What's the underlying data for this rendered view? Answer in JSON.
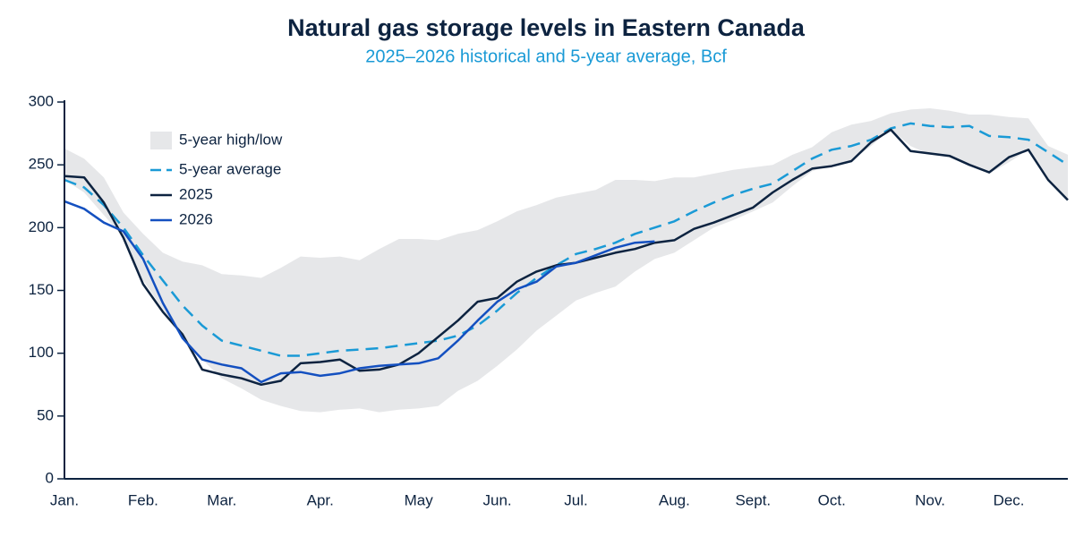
{
  "chart_data": {
    "type": "line",
    "title": "Natural gas storage levels in Eastern Canada",
    "subtitle": "2025–2026 historical and 5-year average, Bcf",
    "categories": [
      "Jan.",
      null,
      null,
      null,
      "Feb.",
      null,
      null,
      null,
      "Mar.",
      null,
      null,
      null,
      null,
      "Apr.",
      null,
      null,
      null,
      null,
      "May",
      null,
      null,
      null,
      "Jun.",
      null,
      null,
      null,
      "Jul.",
      null,
      null,
      null,
      null,
      "Aug.",
      null,
      null,
      null,
      "Sept.",
      null,
      null,
      null,
      "Oct.",
      null,
      null,
      null,
      null,
      "Nov.",
      null,
      null,
      null,
      "Dec.",
      null,
      null,
      null
    ],
    "ylim": [
      0,
      300
    ],
    "yticks": [
      0,
      50,
      100,
      150,
      200,
      250,
      300
    ],
    "series": [
      {
        "name": "5-year high/low",
        "kind": "band",
        "color": "#e6e7e9",
        "high": [
          263,
          255,
          240,
          212,
          195,
          180,
          173,
          170,
          163,
          162,
          160,
          168,
          177,
          176,
          177,
          174,
          183,
          191,
          191,
          190,
          195,
          198,
          205,
          213,
          218,
          224,
          227,
          230,
          238,
          238,
          237,
          240,
          240,
          243,
          246,
          248,
          250,
          258,
          264,
          276,
          282,
          285,
          291,
          294,
          295,
          293,
          290,
          290,
          288,
          287,
          265,
          258
        ],
        "low": [
          238,
          228,
          210,
          192,
          158,
          135,
          112,
          95,
          80,
          72,
          63,
          58,
          54,
          53,
          55,
          56,
          53,
          55,
          56,
          58,
          70,
          78,
          90,
          103,
          118,
          130,
          142,
          148,
          153,
          165,
          175,
          180,
          190,
          200,
          206,
          213,
          220,
          233,
          245,
          250,
          253,
          265,
          278,
          265,
          258,
          256,
          250,
          243,
          252,
          262,
          238,
          222
        ]
      },
      {
        "name": "5-year average",
        "color": "#1a9ad6",
        "dashed": true,
        "values": [
          238,
          232,
          218,
          200,
          178,
          158,
          138,
          122,
          110,
          106,
          102,
          98,
          98,
          100,
          102,
          103,
          104,
          106,
          108,
          110,
          114,
          122,
          134,
          148,
          160,
          170,
          179,
          183,
          188,
          195,
          200,
          205,
          213,
          220,
          226,
          231,
          235,
          245,
          255,
          262,
          265,
          270,
          279,
          283,
          281,
          280,
          281,
          273,
          272,
          270,
          260,
          250
        ]
      },
      {
        "name": "2025",
        "color": "#0d2340",
        "values": [
          241,
          240,
          220,
          192,
          155,
          133,
          115,
          87,
          83,
          80,
          75,
          78,
          92,
          93,
          95,
          86,
          87,
          91,
          100,
          113,
          126,
          141,
          144,
          157,
          165,
          170,
          172,
          176,
          180,
          183,
          188,
          190,
          199,
          204,
          210,
          216,
          228,
          238,
          247,
          249,
          253,
          268,
          278,
          261,
          259,
          257,
          250,
          244,
          256,
          262,
          238,
          222
        ]
      },
      {
        "name": "2026",
        "color": "#1450c0",
        "values": [
          221,
          215,
          204,
          197,
          175,
          140,
          112,
          95,
          91,
          88,
          77,
          84,
          85,
          82,
          84,
          88,
          90,
          91,
          92,
          96,
          110,
          126,
          141,
          151,
          157,
          169,
          172,
          178,
          184,
          188,
          189,
          null,
          null,
          null,
          null,
          null,
          null,
          null,
          null,
          null,
          null,
          null,
          null,
          null,
          null,
          null,
          null,
          null,
          null,
          null,
          null,
          null
        ]
      }
    ]
  }
}
